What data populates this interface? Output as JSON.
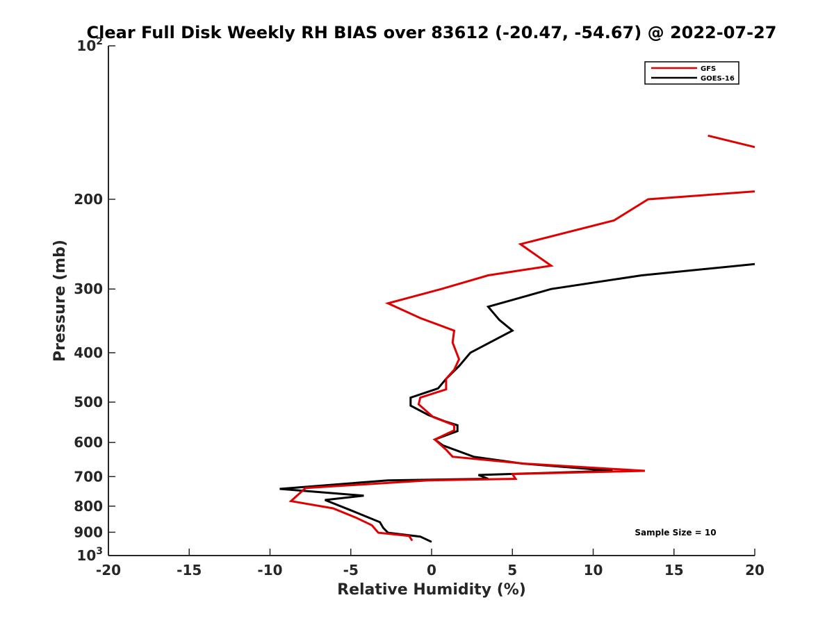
{
  "chart_data": {
    "type": "line",
    "title": "Clear Full Disk Weekly RH BIAS over 83612 (-20.47, -54.67) @ 2022-07-27",
    "xlabel": "Relative Humidity (%)",
    "ylabel": "Pressure (mb)",
    "xlim": [
      -20,
      20
    ],
    "ylim": [
      100,
      1000
    ],
    "y_scale": "log",
    "y_reversed": true,
    "x_ticks": [
      "-20",
      "-15",
      "-10",
      "-5",
      "0",
      "5",
      "10",
      "15",
      "20"
    ],
    "y_ticks": [
      {
        "value": 100,
        "label": "10",
        "sup": "2"
      },
      {
        "value": 200,
        "label": "200"
      },
      {
        "value": 300,
        "label": "300"
      },
      {
        "value": 400,
        "label": "400"
      },
      {
        "value": 500,
        "label": "500"
      },
      {
        "value": 600,
        "label": "600"
      },
      {
        "value": 700,
        "label": "700"
      },
      {
        "value": 800,
        "label": "800"
      },
      {
        "value": 900,
        "label": "900"
      },
      {
        "value": 1000,
        "label": "10",
        "sup": "3"
      }
    ],
    "legend_position": "top-right",
    "annotation": "Sample Size = 10",
    "series": [
      {
        "name": "GFS",
        "color": "#e00000",
        "segments": [
          [
            [
              17.1,
              150
            ],
            [
              20,
              158
            ]
          ],
          [
            [
              20,
              193
            ],
            [
              13.4,
              200
            ],
            [
              11.3,
              220
            ],
            [
              5.5,
              245
            ],
            [
              7.4,
              270
            ],
            [
              3.5,
              282
            ],
            [
              0.6,
              300
            ],
            [
              -2.7,
              320
            ],
            [
              -0.7,
              342
            ],
            [
              1.4,
              362
            ],
            [
              1.3,
              382
            ],
            [
              1.7,
              412
            ],
            [
              1.4,
              432
            ],
            [
              0.9,
              450
            ],
            [
              0.9,
              472
            ],
            [
              -0.7,
              490
            ],
            [
              -0.8,
              505
            ],
            [
              0.1,
              535
            ],
            [
              1.4,
              555
            ],
            [
              1.4,
              568
            ],
            [
              0.2,
              592
            ],
            [
              0.9,
              620
            ],
            [
              1.3,
              640
            ],
            [
              5.7,
              660
            ],
            [
              13.2,
              682
            ],
            [
              5.0,
              692
            ],
            [
              5.2,
              707
            ],
            [
              -0.2,
              712
            ],
            [
              -7.8,
              737
            ],
            [
              -8.7,
              782
            ],
            [
              -6.1,
              808
            ],
            [
              -4.7,
              842
            ],
            [
              -3.7,
              872
            ],
            [
              -3.3,
              902
            ],
            [
              -1.4,
              915
            ],
            [
              -1.2,
              935
            ]
          ]
        ]
      },
      {
        "name": "GOES-16",
        "color": "#000000",
        "segments": [
          [
            [
              20,
              268
            ],
            [
              13.0,
              282
            ],
            [
              7.4,
              300
            ],
            [
              3.5,
              325
            ],
            [
              4.2,
              345
            ],
            [
              5.0,
              362
            ],
            [
              2.4,
              400
            ],
            [
              1.7,
              425
            ],
            [
              0.9,
              450
            ],
            [
              0.4,
              470
            ],
            [
              -1.3,
              490
            ],
            [
              -1.3,
              508
            ],
            [
              -0.2,
              530
            ],
            [
              0.8,
              545
            ],
            [
              1.6,
              555
            ],
            [
              1.6,
              570
            ],
            [
              0.2,
              592
            ],
            [
              0.7,
              608
            ],
            [
              2.6,
              640
            ],
            [
              5.6,
              660
            ],
            [
              11.2,
              682
            ],
            [
              2.9,
              695
            ],
            [
              3.5,
              707
            ],
            [
              -2.7,
              712
            ],
            [
              -9.4,
              740
            ],
            [
              -4.2,
              763
            ],
            [
              -6.6,
              778
            ],
            [
              -5.0,
              815
            ],
            [
              -3.2,
              860
            ],
            [
              -3.0,
              882
            ],
            [
              -2.7,
              902
            ],
            [
              -0.7,
              918
            ],
            [
              0.0,
              940
            ]
          ]
        ]
      }
    ]
  }
}
